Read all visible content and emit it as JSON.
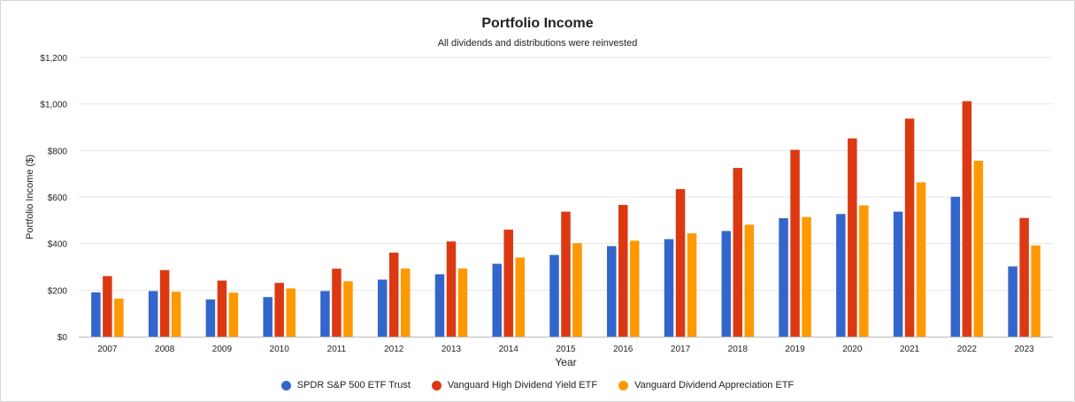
{
  "chart_data": {
    "type": "bar",
    "title": "Portfolio Income",
    "subtitle": "All dividends and distributions were reinvested",
    "xlabel": "Year",
    "ylabel": "Portfolio Income ($)",
    "ylim": [
      0,
      1200
    ],
    "yticks": [
      0,
      200,
      400,
      600,
      800,
      1000,
      1200
    ],
    "ytick_labels": [
      "$0",
      "$200",
      "$400",
      "$600",
      "$800",
      "$1,000",
      "$1,200"
    ],
    "grid": true,
    "legend_position": "bottom-center",
    "categories": [
      "2007",
      "2008",
      "2009",
      "2010",
      "2011",
      "2012",
      "2013",
      "2014",
      "2015",
      "2016",
      "2017",
      "2018",
      "2019",
      "2020",
      "2021",
      "2022",
      "2023"
    ],
    "series": [
      {
        "name": "SPDR S&P 500 ETF Trust",
        "color": "#3366cc",
        "values": [
          190,
          196,
          160,
          170,
          196,
          245,
          268,
          313,
          351,
          389,
          419,
          454,
          509,
          527,
          537,
          601,
          302
        ]
      },
      {
        "name": "Vanguard High Dividend Yield ETF",
        "color": "#dc3912",
        "values": [
          260,
          286,
          241,
          231,
          292,
          361,
          409,
          460,
          537,
          566,
          634,
          725,
          803,
          852,
          937,
          1012,
          510
        ]
      },
      {
        "name": "Vanguard Dividend Appreciation ETF",
        "color": "#ff9900",
        "values": [
          163,
          193,
          189,
          207,
          238,
          293,
          293,
          340,
          402,
          412,
          444,
          481,
          514,
          564,
          663,
          756,
          392
        ]
      }
    ]
  }
}
